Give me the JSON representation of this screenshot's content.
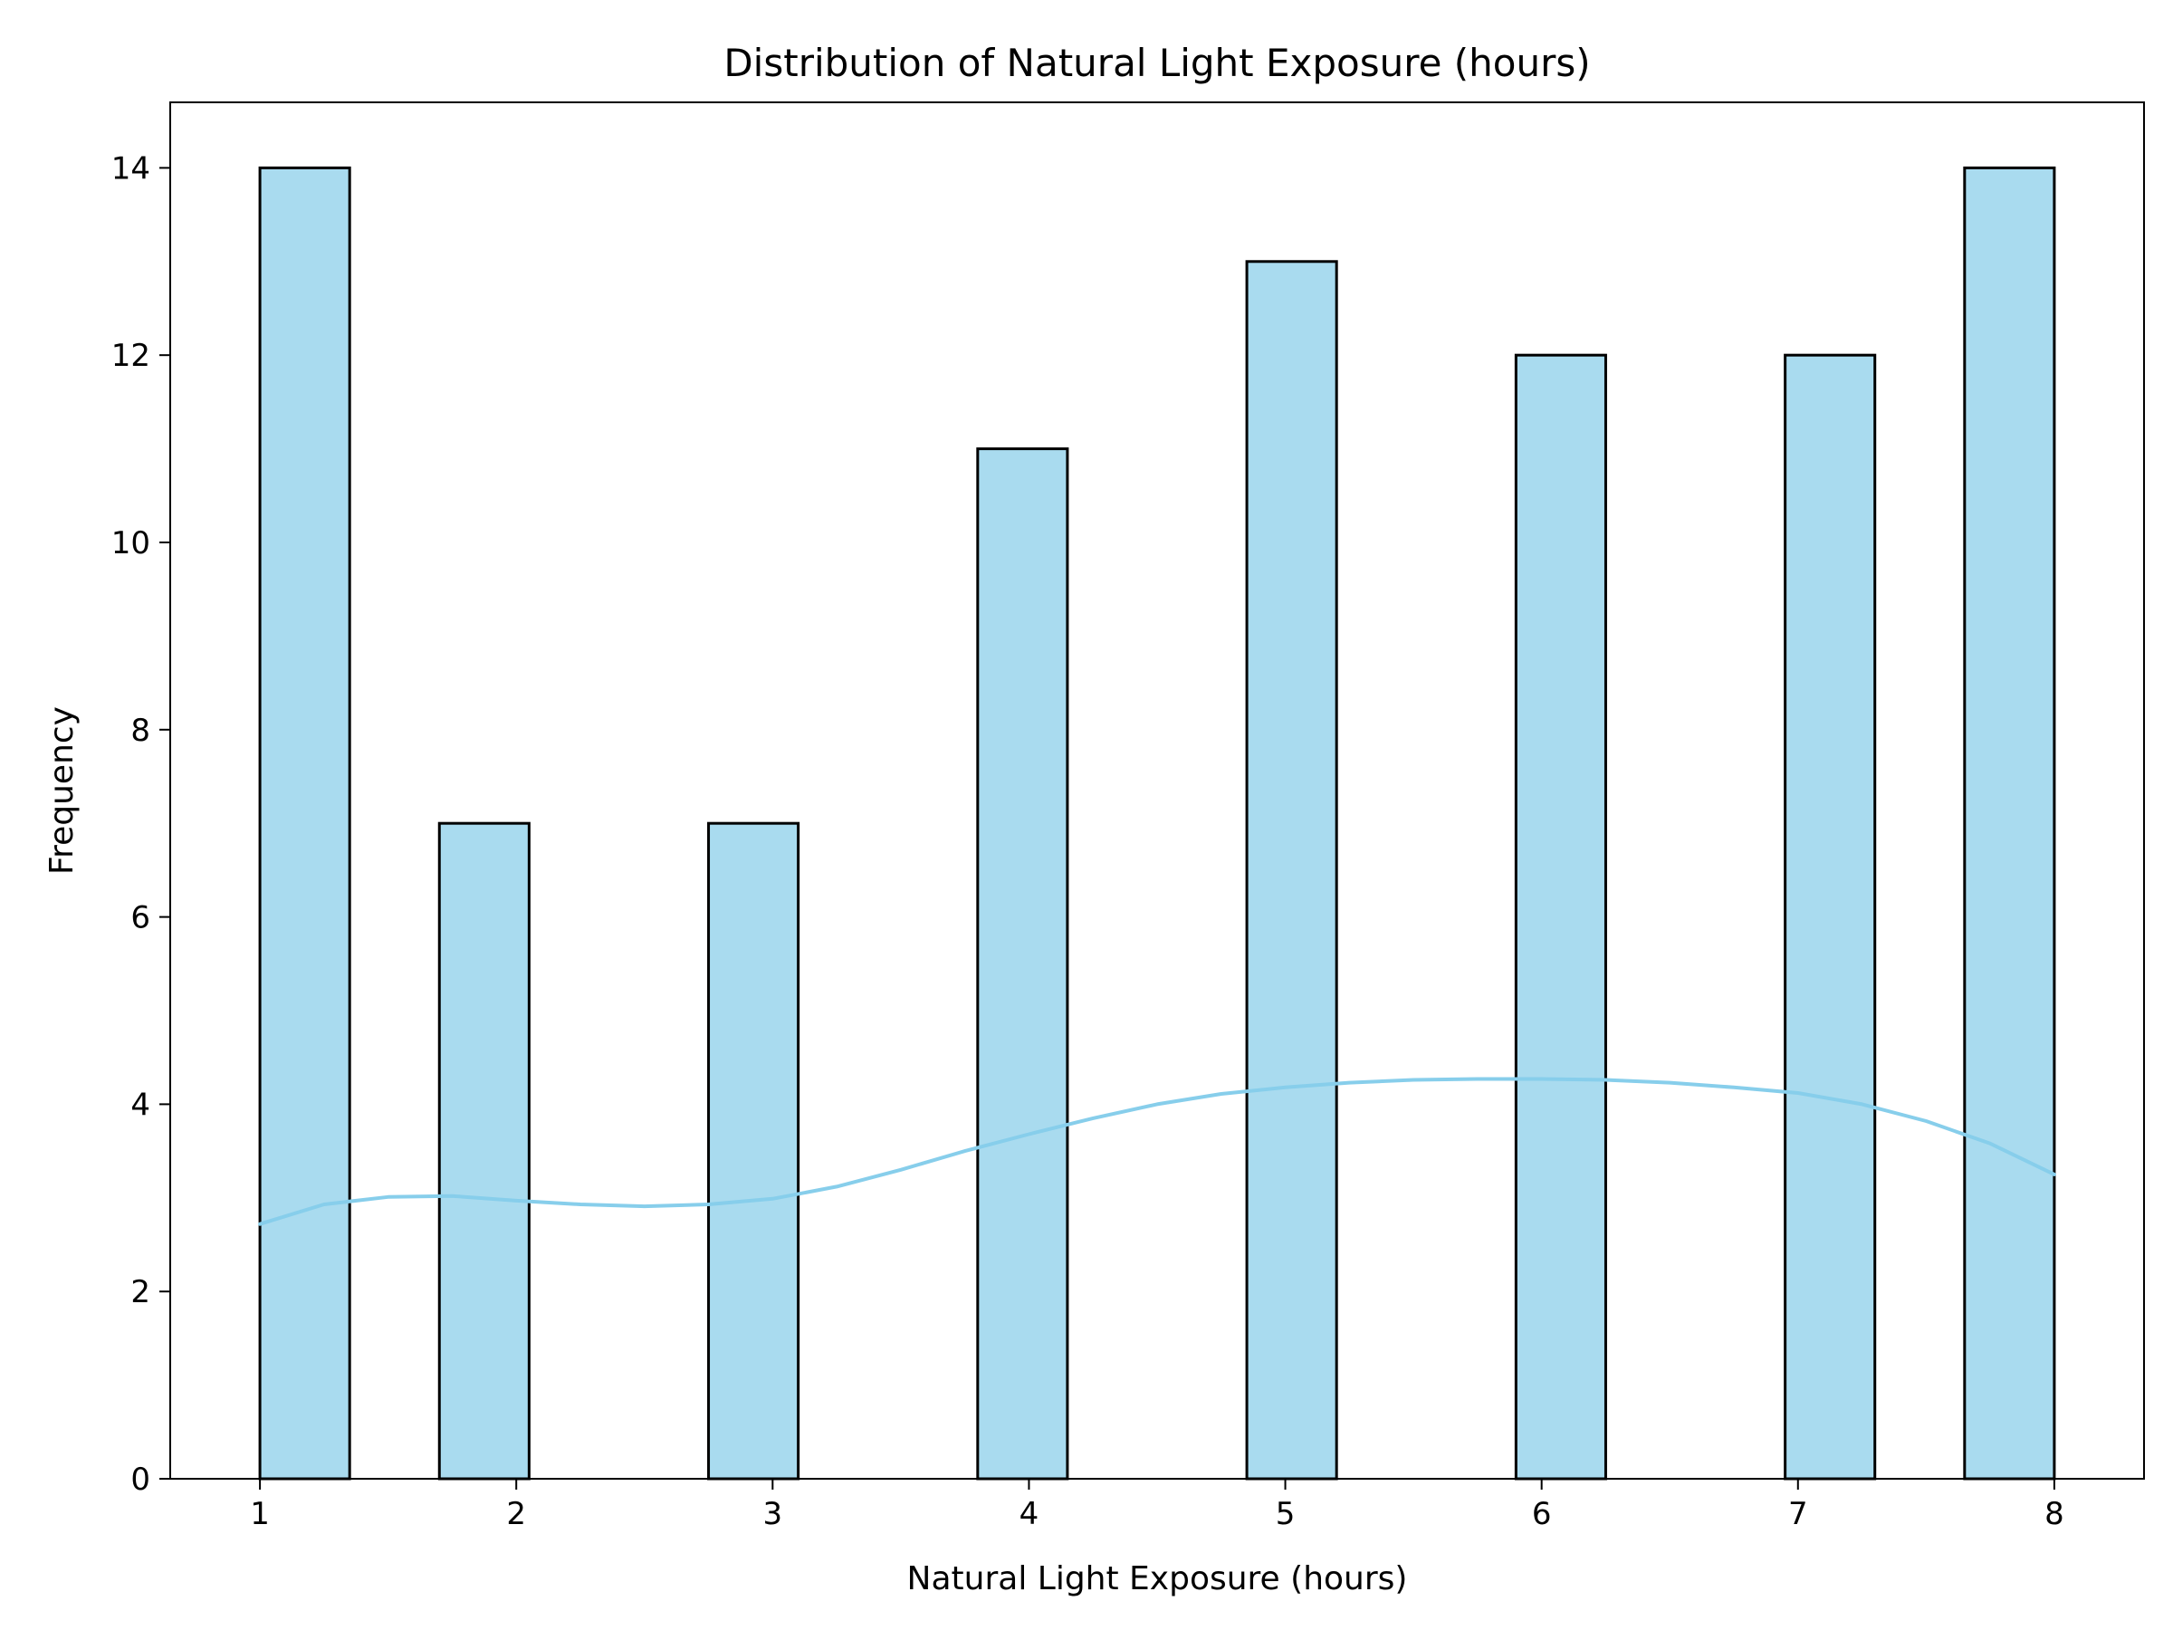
{
  "chart_data": {
    "type": "bar",
    "title": "Distribution of Natural Light Exposure (hours)",
    "xlabel": "Natural Light Exposure (hours)",
    "ylabel": "Frequency",
    "xlim": [
      0.65,
      8.35
    ],
    "ylim": [
      0,
      14.7
    ],
    "x_ticks": [
      1,
      2,
      3,
      4,
      5,
      6,
      7,
      8
    ],
    "y_ticks": [
      0,
      2,
      4,
      6,
      8,
      10,
      12,
      14
    ],
    "bins": [
      {
        "x0": 1.0,
        "x1": 1.35,
        "value": 14
      },
      {
        "x0": 1.7,
        "x1": 2.05,
        "value": 7
      },
      {
        "x0": 2.75,
        "x1": 3.1,
        "value": 7
      },
      {
        "x0": 3.8,
        "x1": 4.15,
        "value": 11
      },
      {
        "x0": 4.85,
        "x1": 5.2,
        "value": 13
      },
      {
        "x0": 5.9,
        "x1": 6.25,
        "value": 12
      },
      {
        "x0": 6.95,
        "x1": 7.3,
        "value": 12
      },
      {
        "x0": 7.65,
        "x1": 8.0,
        "value": 14
      }
    ],
    "kde": {
      "x": [
        1.0,
        1.25,
        1.5,
        1.75,
        2.0,
        2.25,
        2.5,
        2.75,
        3.0,
        3.25,
        3.5,
        3.75,
        4.0,
        4.25,
        4.5,
        4.75,
        5.0,
        5.25,
        5.5,
        5.75,
        6.0,
        6.25,
        6.5,
        6.75,
        7.0,
        7.25,
        7.5,
        7.75,
        8.0
      ],
      "y": [
        2.72,
        2.93,
        3.01,
        3.02,
        2.97,
        2.93,
        2.91,
        2.93,
        2.99,
        3.12,
        3.3,
        3.5,
        3.68,
        3.85,
        4.0,
        4.11,
        4.18,
        4.23,
        4.26,
        4.27,
        4.27,
        4.26,
        4.23,
        4.18,
        4.12,
        4.0,
        3.82,
        3.58,
        3.25
      ]
    },
    "grid": false,
    "legend": "none",
    "colors": {
      "bar_fill": "#a9dbef",
      "bar_edge": "#000000",
      "kde_line": "#87ceeb"
    }
  }
}
